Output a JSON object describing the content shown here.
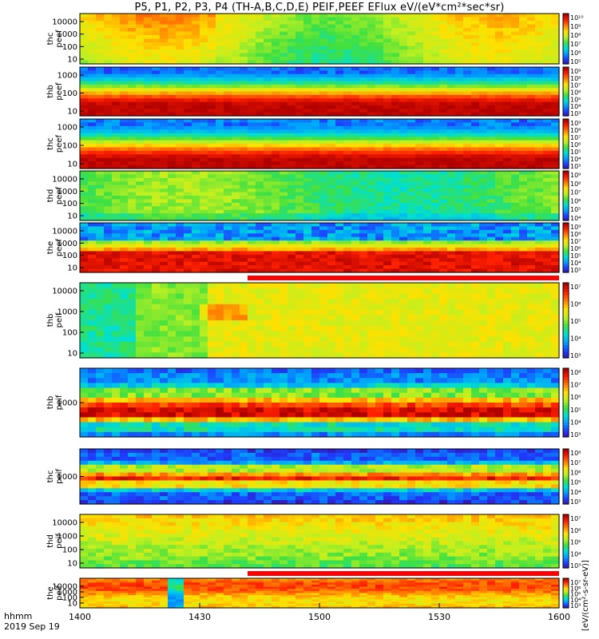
{
  "title": "P5, P1, P2, P3, P4 (TH-A,B,C,D,E) PEIF,PEEF EFlux eV/(eV*cm²*sec*sr)",
  "footer": {
    "time_label": "hhmm",
    "date_label": "2019 Sep 19"
  },
  "colorbar_label": "[eV/(cm²-s-sr-eV)]",
  "colors": {
    "colormap": [
      "#3b0f9f",
      "#1e3cff",
      "#00a0ff",
      "#00e0d0",
      "#40e040",
      "#c0f020",
      "#ffe000",
      "#ff8000",
      "#ff2000",
      "#b00000"
    ]
  },
  "chart_data": [
    {
      "type": "heatmap",
      "ylabel": "thc\npeef",
      "ytick_labels": [
        "10",
        "100",
        "1000",
        "10000"
      ],
      "colorbar_ticks": [
        "10⁵",
        "10⁶",
        "10⁷",
        "10⁸",
        "10⁹",
        "10¹⁰"
      ],
      "clim_exp": [
        5,
        10
      ]
    },
    {
      "type": "heatmap",
      "ylabel": "thb\npeef",
      "ytick_labels": [
        "10",
        "100",
        "1000"
      ],
      "colorbar_ticks": [
        "10³",
        "10⁴",
        "10⁵",
        "10⁶",
        "10⁷",
        "10⁸",
        "10⁹"
      ],
      "clim_exp": [
        3,
        9
      ]
    },
    {
      "type": "heatmap",
      "ylabel": "thc\npeef",
      "ytick_labels": [
        "10",
        "100",
        "1000"
      ],
      "colorbar_ticks": [
        "10³",
        "10⁴",
        "10⁵",
        "10⁶",
        "10⁷",
        "10⁸",
        "10⁹"
      ],
      "clim_exp": [
        3,
        9
      ]
    },
    {
      "type": "heatmap",
      "ylabel": "thd\npeef",
      "ytick_labels": [
        "10",
        "100",
        "1000",
        "10000"
      ],
      "colorbar_ticks": [
        "10⁴",
        "10⁵",
        "10⁶",
        "10⁷",
        "10⁸",
        "10⁹"
      ],
      "clim_exp": [
        4,
        9
      ]
    },
    {
      "type": "heatmap",
      "ylabel": "the\npeef",
      "ytick_labels": [
        "10",
        "100",
        "1000",
        "10000"
      ],
      "colorbar_ticks": [
        "10³",
        "10⁴",
        "10⁵",
        "10⁶",
        "10⁷",
        "10⁸",
        "10⁹"
      ],
      "clim_exp": [
        3,
        9
      ]
    },
    {
      "type": "heatmap",
      "ylabel": "thb\npeif",
      "ytick_labels": [
        "10",
        "100",
        "1000",
        "10000"
      ],
      "colorbar_ticks": [
        "10³",
        "10⁴",
        "10⁵",
        "10⁶",
        "10⁷"
      ],
      "clim_exp": [
        3,
        7
      ]
    },
    {
      "type": "heatmap",
      "ylabel": "thb\npeif",
      "ytick_labels": [
        "1000"
      ],
      "colorbar_ticks": [
        "10³",
        "10⁴",
        "10⁵",
        "10⁶",
        "10⁷",
        "10⁸"
      ],
      "clim_exp": [
        3,
        8
      ]
    },
    {
      "type": "heatmap",
      "ylabel": "thc\npeif",
      "ytick_labels": [
        "1000"
      ],
      "colorbar_ticks": [
        "10³",
        "10⁴",
        "10⁵",
        "10⁶",
        "10⁷",
        "10⁸"
      ],
      "clim_exp": [
        3,
        8
      ]
    },
    {
      "type": "heatmap",
      "ylabel": "thd\npeif",
      "ytick_labels": [
        "10",
        "100",
        "1000",
        "10000"
      ],
      "colorbar_ticks": [
        "10³",
        "10⁴",
        "10⁵",
        "10⁶",
        "10⁷"
      ],
      "clim_exp": [
        3,
        7
      ]
    },
    {
      "type": "heatmap",
      "ylabel": "the\npeif",
      "ytick_labels": [
        "10",
        "100",
        "1000",
        "10000"
      ],
      "colorbar_ticks": [
        "10³",
        "10⁴",
        "10⁵",
        "10⁶",
        "10⁷"
      ],
      "clim_exp": [
        3,
        7
      ]
    }
  ],
  "x_axis": {
    "tick_labels": [
      "1400",
      "1430",
      "1500",
      "1530",
      "1600"
    ]
  }
}
